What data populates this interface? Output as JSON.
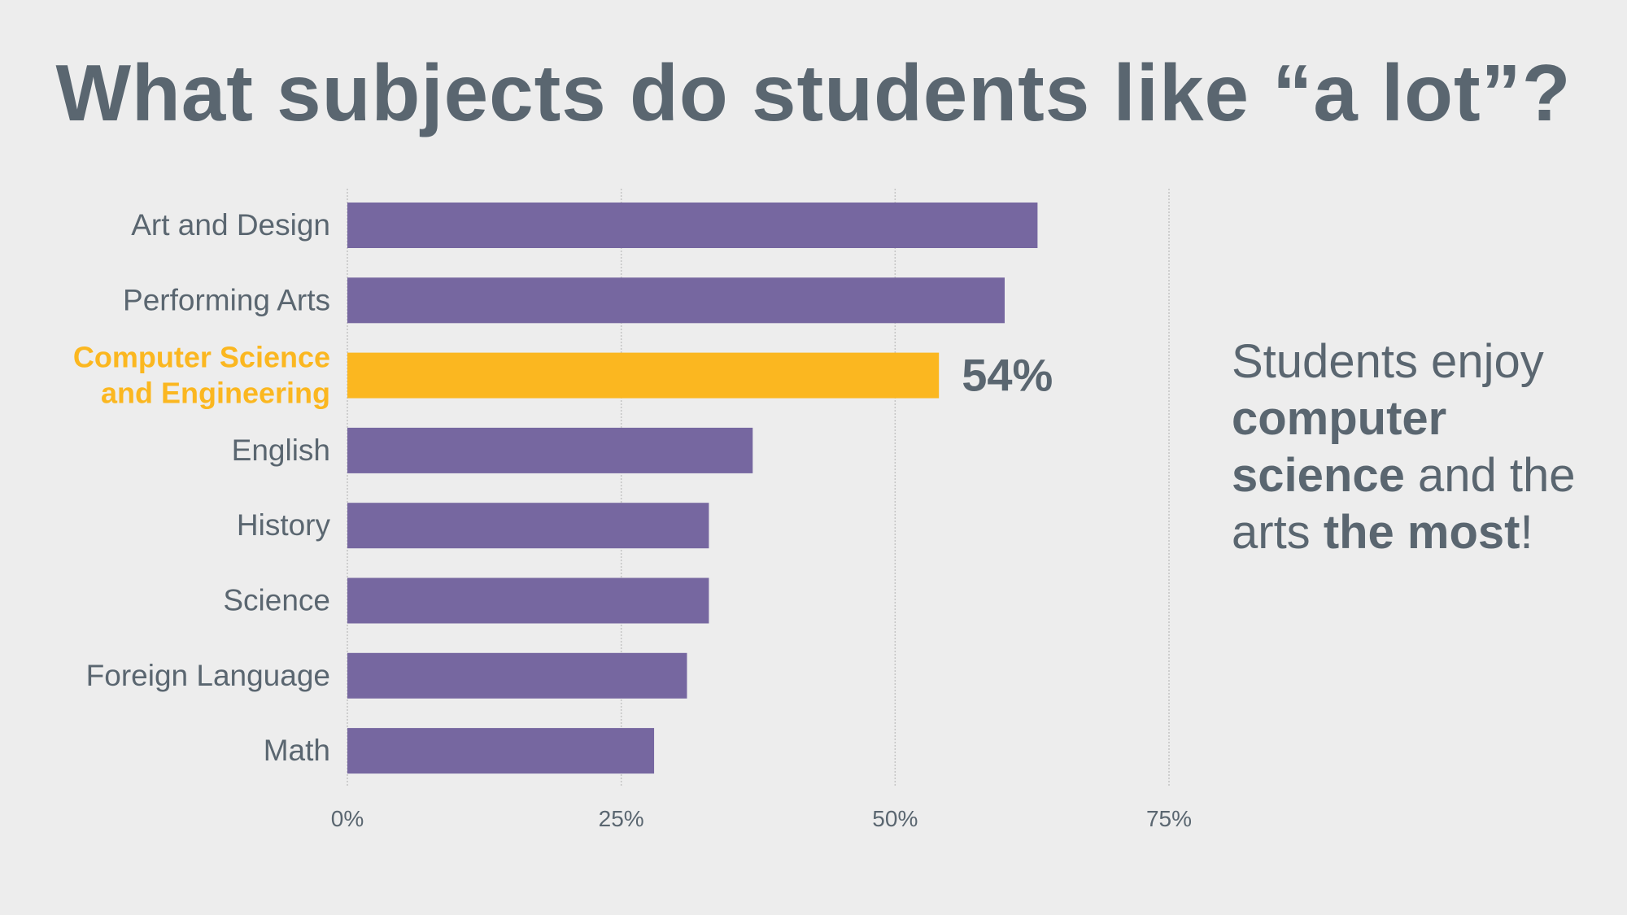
{
  "chart_data": {
    "type": "bar",
    "orientation": "horizontal",
    "title": "What subjects do students like “a lot”?",
    "categories": [
      "Art and Design",
      "Performing Arts",
      "Computer Science and Engineering",
      "English",
      "History",
      "Science",
      "Foreign Language",
      "Math"
    ],
    "category_label_lines": [
      [
        "Art and Design"
      ],
      [
        "Performing Arts"
      ],
      [
        "Computer Science",
        "and Engineering"
      ],
      [
        "English"
      ],
      [
        "History"
      ],
      [
        "Science"
      ],
      [
        "Foreign Language"
      ],
      [
        "Math"
      ]
    ],
    "values": [
      63,
      60,
      54,
      37,
      33,
      33,
      31,
      28
    ],
    "highlight_index": 2,
    "data_labels": [
      {
        "index": 2,
        "text": "54%"
      }
    ],
    "xlim": [
      0,
      75
    ],
    "xticks": [
      0,
      25,
      50,
      75
    ],
    "xtick_labels": [
      "0%",
      "25%",
      "50%",
      "75%"
    ],
    "xlabel": "",
    "ylabel": "",
    "grid": "vertical dotted",
    "legend": "none",
    "colors": {
      "bar": "#7667a0",
      "highlight": "#fbb720",
      "text": "#5a6670",
      "grid": "#c4c4c4",
      "background": "#ededed"
    }
  },
  "callout": [
    {
      "text": "Students enjoy ",
      "bold": false
    },
    {
      "text": "computer science",
      "bold": true
    },
    {
      "text": " and the arts ",
      "bold": false
    },
    {
      "text": "the most",
      "bold": true
    },
    {
      "text": "!",
      "bold": false
    }
  ]
}
